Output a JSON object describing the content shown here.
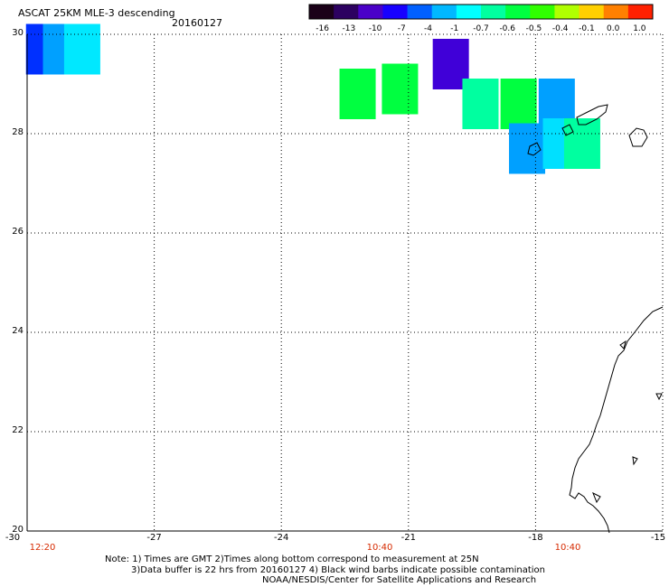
{
  "header": {
    "title": "ASCAT 25KM MLE-3 descending",
    "date": "20160127"
  },
  "colorbar": {
    "labels": [
      "-16",
      "-13",
      "-10",
      "-7",
      "-4",
      "-1",
      "-0.7",
      "-0.6",
      "-0.5",
      "-0.4",
      "-0.1",
      "0.0",
      "1.0"
    ],
    "colors": [
      "#1a0018",
      "#2c0060",
      "#4a00c8",
      "#1800ff",
      "#0060ff",
      "#00b8ff",
      "#00ffff",
      "#00ffa0",
      "#00ff40",
      "#30ff00",
      "#b0ff00",
      "#ffd000",
      "#ff8000",
      "#ff2000"
    ]
  },
  "axes": {
    "y_ticks": [
      "30",
      "28",
      "26",
      "24",
      "22",
      "20"
    ],
    "x_ticks": [
      "-30",
      "-27",
      "-24",
      "-21",
      "-18",
      "-15"
    ]
  },
  "time_labels": [
    "12:20",
    "10:40",
    "10:40"
  ],
  "notes": {
    "line1": "Note: 1) Times are GMT 2)Times along bottom correspond to measurement at 25N",
    "line2": "3)Data buffer is 22 hrs from 20160127 4) Black wind barbs indicate possible contamination",
    "line3": "NOAA/NESDIS/Center for Satellite Applications and Research"
  },
  "data_cells": [
    {
      "lon": -29.6,
      "lat": 29.7,
      "color": "#0030ff"
    },
    {
      "lon": -29.2,
      "lat": 29.7,
      "color": "#00a0ff"
    },
    {
      "lon": -28.7,
      "lat": 29.7,
      "color": "#00e8ff"
    },
    {
      "lon": -22.2,
      "lat": 28.8,
      "color": "#00ff40"
    },
    {
      "lon": -21.2,
      "lat": 28.9,
      "color": "#00ff40"
    },
    {
      "lon": -20.0,
      "lat": 29.4,
      "color": "#4000d8"
    },
    {
      "lon": -19.3,
      "lat": 28.6,
      "color": "#00ffa0"
    },
    {
      "lon": -18.4,
      "lat": 28.6,
      "color": "#00ff40"
    },
    {
      "lon": -17.5,
      "lat": 28.6,
      "color": "#00a0ff"
    },
    {
      "lon": -18.2,
      "lat": 27.7,
      "color": "#00a0ff"
    },
    {
      "lon": -17.4,
      "lat": 27.8,
      "color": "#00e0ff"
    },
    {
      "lon": -16.9,
      "lat": 27.8,
      "color": "#00ffa0"
    }
  ]
}
